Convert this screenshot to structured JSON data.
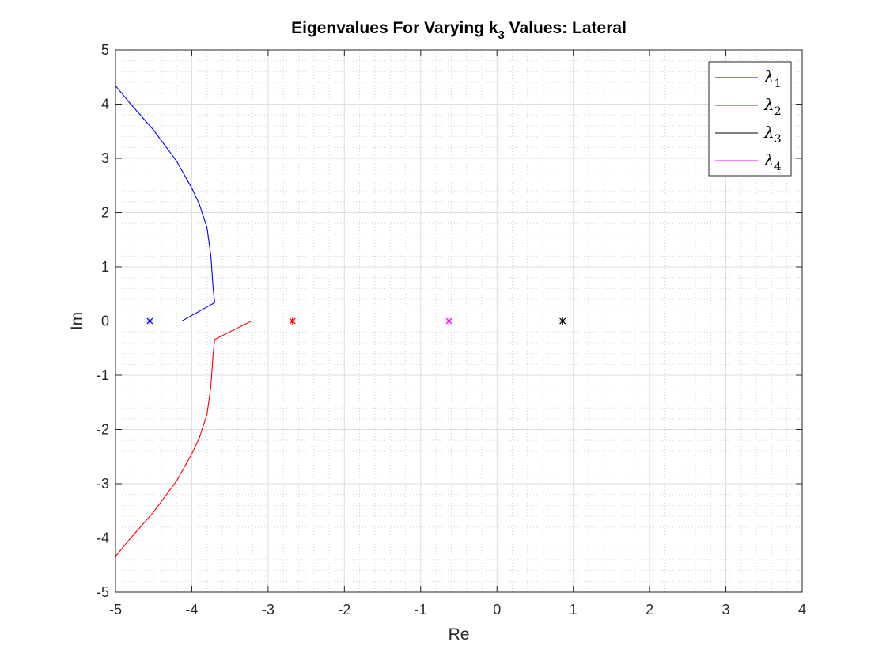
{
  "chart_data": {
    "type": "line",
    "title": "Eigenvalues For Varying k_3 Values: Lateral",
    "title_main": "Eigenvalues For Varying k",
    "title_sub": "3",
    "title_tail": " Values: Lateral",
    "xlabel": "Re",
    "ylabel": "Im",
    "xlim": [
      -5,
      4
    ],
    "ylim": [
      -5,
      5
    ],
    "xticks": [
      -5,
      -4,
      -3,
      -2,
      -1,
      0,
      1,
      2,
      3,
      4
    ],
    "yticks": [
      -5,
      -4,
      -3,
      -2,
      -1,
      0,
      1,
      2,
      3,
      4,
      5
    ],
    "grid": "major and minor",
    "legend_position": "top-right",
    "series": [
      {
        "name": "λ1",
        "symbol": "λ",
        "sub": "1",
        "color": "#0000ff",
        "points": [
          [
            -5.0,
            4.34
          ],
          [
            -4.8,
            4.0
          ],
          [
            -4.5,
            3.52
          ],
          [
            -4.2,
            2.95
          ],
          [
            -4.0,
            2.45
          ],
          [
            -3.9,
            2.15
          ],
          [
            -3.8,
            1.72
          ],
          [
            -3.75,
            1.2
          ],
          [
            -3.72,
            0.6
          ],
          [
            -3.7,
            0.34
          ],
          [
            -4.13,
            0.0
          ],
          [
            -4.55,
            0.0
          ]
        ],
        "marker": [
          -4.55,
          0.0
        ]
      },
      {
        "name": "λ2",
        "symbol": "λ",
        "sub": "2",
        "color": "#ff0000",
        "points": [
          [
            -5.0,
            -4.34
          ],
          [
            -4.8,
            -4.0
          ],
          [
            -4.5,
            -3.52
          ],
          [
            -4.2,
            -2.95
          ],
          [
            -4.0,
            -2.45
          ],
          [
            -3.9,
            -2.15
          ],
          [
            -3.8,
            -1.72
          ],
          [
            -3.75,
            -1.2
          ],
          [
            -3.72,
            -0.6
          ],
          [
            -3.7,
            -0.34
          ],
          [
            -3.22,
            0.0
          ],
          [
            -2.68,
            0.0
          ]
        ],
        "marker": [
          -2.68,
          0.0
        ]
      },
      {
        "name": "λ3",
        "symbol": "λ",
        "sub": "3",
        "color": "#000000",
        "points": [
          [
            -0.65,
            0.0
          ],
          [
            4.0,
            0.0
          ]
        ],
        "marker": [
          0.86,
          0.0
        ]
      },
      {
        "name": "λ4",
        "symbol": "λ",
        "sub": "4",
        "color": "#ff00ff",
        "points": [
          [
            -5.0,
            0.0
          ],
          [
            -0.38,
            0.0
          ]
        ],
        "marker": [
          -0.63,
          0.0
        ]
      }
    ]
  }
}
